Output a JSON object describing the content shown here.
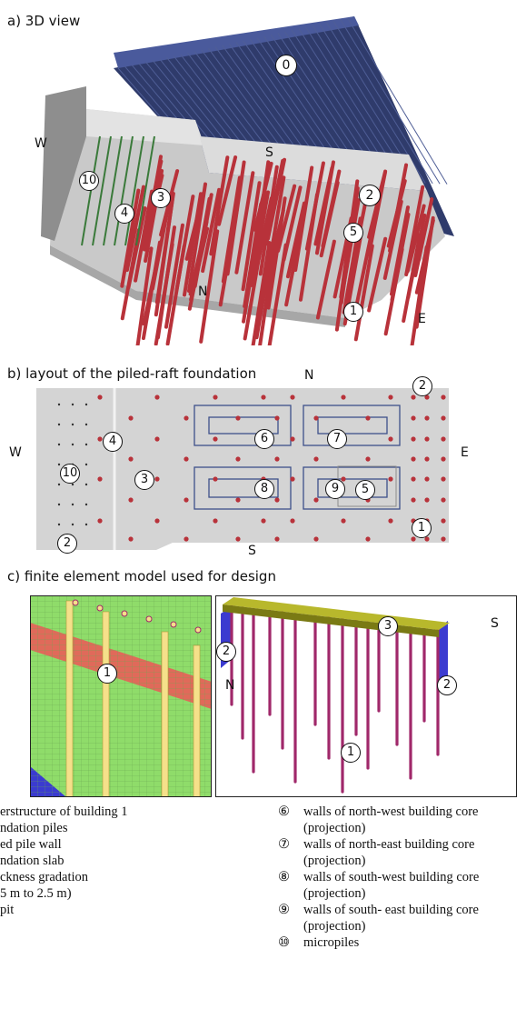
{
  "panels": {
    "a": {
      "title": "a) 3D view",
      "directions": {
        "w": "W",
        "s": "S",
        "n": "N",
        "e": "E"
      },
      "markers": [
        "0",
        "2",
        "10",
        "3",
        "4",
        "5",
        "1"
      ]
    },
    "b": {
      "title": "b) layout of the piled-raft foundation",
      "directions": {
        "n": "N",
        "w": "W",
        "e": "E",
        "s": "S"
      },
      "markers": [
        "2",
        "4",
        "10",
        "3",
        "6",
        "7",
        "8",
        "9",
        "5",
        "1",
        "2"
      ]
    },
    "c": {
      "title": "c) finite element model used for design",
      "left_markers": [
        "1"
      ],
      "right_markers": [
        "2",
        "3",
        "2",
        "1"
      ],
      "directions": {
        "s": "S",
        "n": "N"
      }
    }
  },
  "legend": {
    "left": [
      "erstructure of building 1",
      "ndation piles",
      "ed pile wall",
      "ndation slab",
      "ckness gradation",
      "5 m to 2.5 m)",
      "pit"
    ],
    "right": [
      {
        "symbol": "⑥",
        "text": "walls of north-west building core",
        "sub": "(projection)"
      },
      {
        "symbol": "⑦",
        "text": "walls of north-east building core",
        "sub": "(projection)"
      },
      {
        "symbol": "⑧",
        "text": "walls of south-west building core",
        "sub": "(projection)"
      },
      {
        "symbol": "⑨",
        "text": "walls of south- east building core",
        "sub": "(projection)"
      },
      {
        "symbol": "⑩",
        "text": "micropiles",
        "sub": ""
      }
    ]
  },
  "colors": {
    "pile_red": "#b8323a",
    "building_blue": "#2f3b6b",
    "slab_grey": "#bfbfbf",
    "fe_green": "#8fdc6a",
    "fe_red_band": "#e06a5a",
    "fe_blue": "#3b3bd0",
    "fe_pile_yellow": "#f5e08a",
    "fe_slab_olive": "#8a8a1c",
    "fe_pile_magenta": "#a0286a"
  }
}
